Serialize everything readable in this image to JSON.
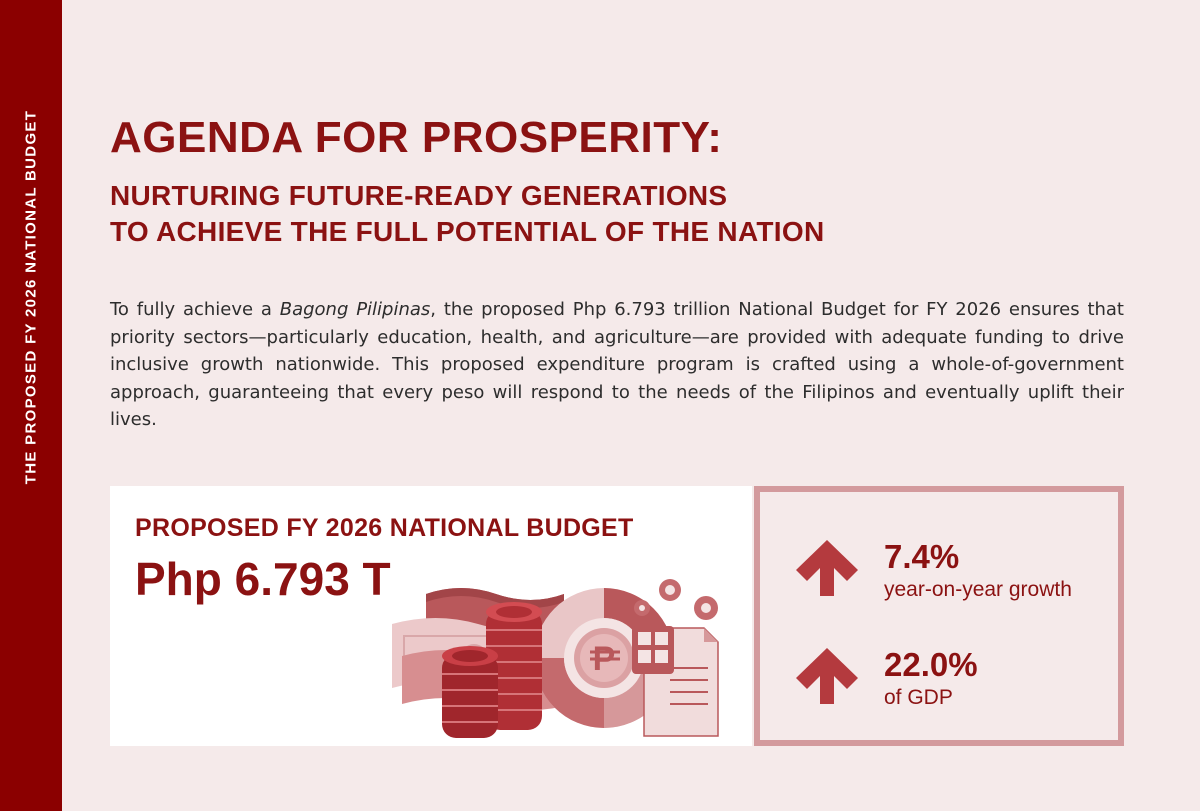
{
  "sidebar": {
    "text": "THE PROPOSED FY 2026 NATIONAL BUDGET"
  },
  "header": {
    "title": "AGENDA FOR PROSPERITY:",
    "subtitle_line1": "NURTURING FUTURE-READY GENERATIONS",
    "subtitle_line2": "TO ACHIEVE THE FULL POTENTIAL OF THE NATION"
  },
  "body": {
    "text_before": "To fully achieve a ",
    "italic": "Bagong Pilipinas",
    "text_after": ", the proposed Php 6.793 trillion National Budget for FY 2026 ensures that priority sectors—particularly education, health, and agriculture—are provided with adequate funding to drive inclusive growth nationwide. This proposed expenditure program is crafted using a whole-of-government approach, guaranteeing that every peso will respond to the needs of the Filipinos and eventually uplift their lives."
  },
  "budget_card": {
    "label": "PROPOSED FY 2026 NATIONAL BUDGET",
    "value": "Php 6.793 T",
    "illustration_icon": "money-coins-chart-icon"
  },
  "stats": [
    {
      "value": "7.4%",
      "label": "year-on-year growth",
      "icon": "arrow-up-icon"
    },
    {
      "value": "22.0%",
      "label": "of GDP",
      "icon": "arrow-up-icon"
    }
  ],
  "colors": {
    "primary": "#8b1212",
    "sidebar": "#8b0000",
    "background": "#f5eaea",
    "accent_light": "#d39a9d"
  }
}
